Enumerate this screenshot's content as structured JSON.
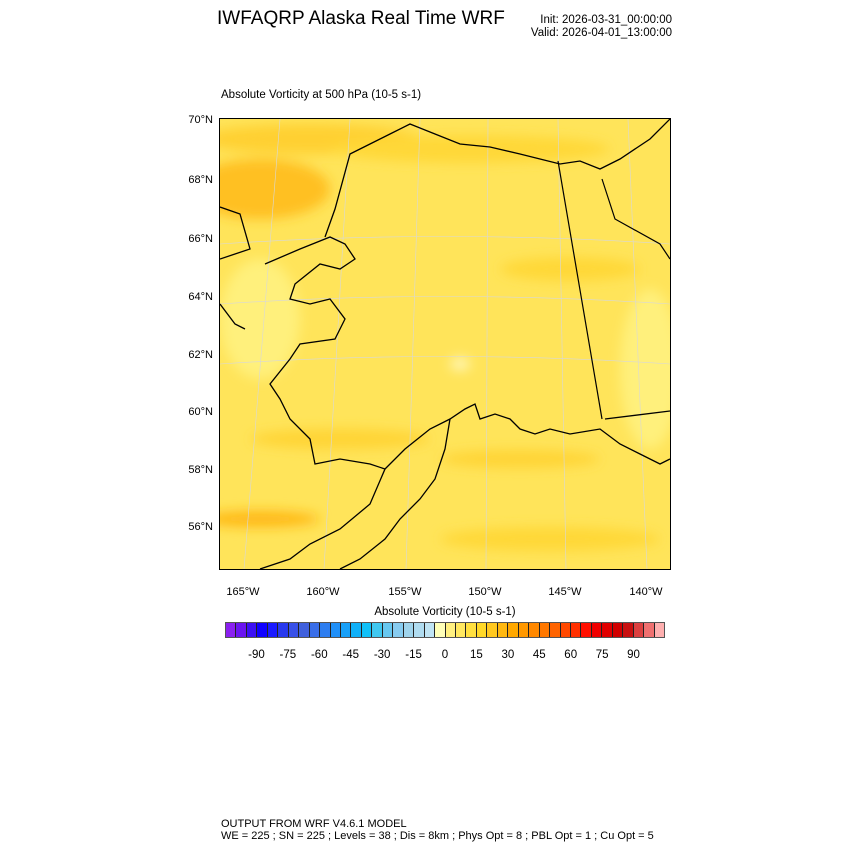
{
  "header": {
    "title": "IWFAQRP Alaska Real Time WRF",
    "init": "Init: 2026-03-31_00:00:00",
    "valid": "Valid: 2026-04-01_13:00:00"
  },
  "plot": {
    "subtitle": "Absolute Vorticity at 500 hPa   (10-5 s-1)",
    "lat_labels": [
      "70°N",
      "68°N",
      "66°N",
      "64°N",
      "62°N",
      "60°N",
      "58°N",
      "56°N"
    ],
    "lon_labels": [
      "165°W",
      "160°W",
      "155°W",
      "150°W",
      "145°W",
      "140°W"
    ],
    "field_dominant_color": "#ffe860",
    "high_color": "#ffb810"
  },
  "colorbar": {
    "title": "Absolute Vorticity  (10-5 s-1)",
    "labels": [
      "-90",
      "-75",
      "-60",
      "-45",
      "-30",
      "-15",
      "0",
      "15",
      "30",
      "45",
      "60",
      "75",
      "90"
    ],
    "colors": [
      "#8a20f0",
      "#6a14f0",
      "#3c10f5",
      "#1000ff",
      "#1a1aff",
      "#2838ee",
      "#3850e8",
      "#4060dc",
      "#3a6ee8",
      "#2e7ef0",
      "#2090f8",
      "#18a0f8",
      "#10b0f8",
      "#10c0f8",
      "#40c8f0",
      "#68c8f0",
      "#88ccf0",
      "#a0d4ec",
      "#b0dcf0",
      "#c0e4f4",
      "#ffffb8",
      "#fff080",
      "#ffe860",
      "#ffe040",
      "#ffd828",
      "#ffc820",
      "#ffb810",
      "#ffa800",
      "#ff9800",
      "#ff8800",
      "#ff7800",
      "#ff6400",
      "#ff4800",
      "#ff3000",
      "#ff1000",
      "#f00000",
      "#e00000",
      "#d00000",
      "#c81010",
      "#dc4040",
      "#f07070",
      "#ffb0b0"
    ]
  },
  "footer": {
    "line1": "OUTPUT FROM WRF V4.6.1 MODEL",
    "line2": "WE = 225 ; SN = 225 ; Levels = 38 ; Dis = 8km ; Phys Opt = 8 ; PBL Opt = 1 ; Cu Opt = 5"
  }
}
